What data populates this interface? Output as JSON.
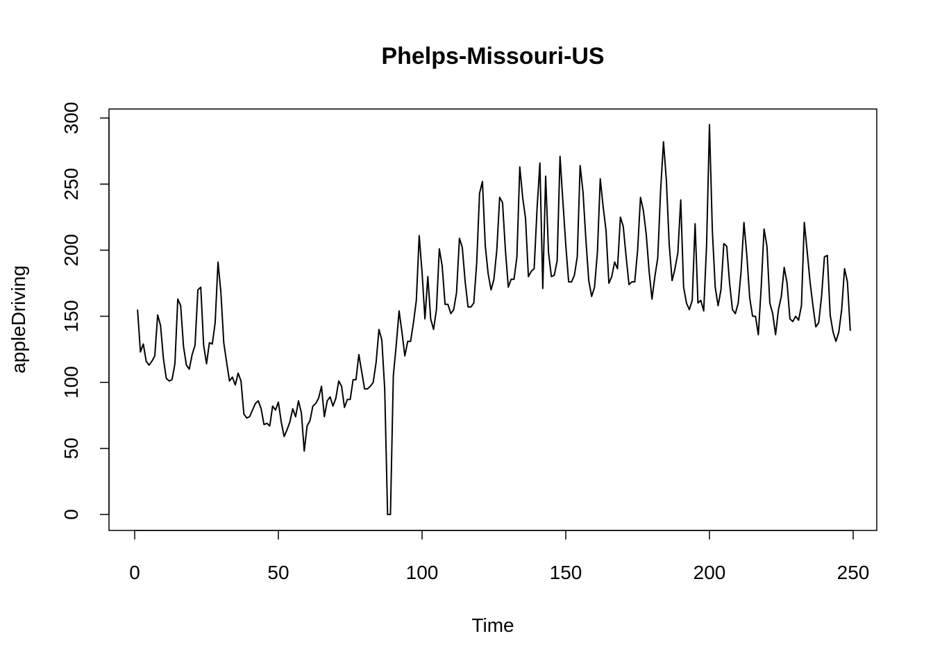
{
  "chart_data": {
    "type": "line",
    "title": "Phelps-Missouri-US",
    "xlabel": "Time",
    "ylabel": "appleDriving",
    "xlim": [
      1,
      248
    ],
    "ylim": [
      0,
      295
    ],
    "x_ticks": [
      0,
      50,
      100,
      150,
      200,
      250
    ],
    "x_tick_labels": [
      "0",
      "50",
      "100",
      "150",
      "200",
      "250"
    ],
    "y_ticks": [
      0,
      50,
      100,
      150,
      200,
      250,
      300
    ],
    "y_tick_labels": [
      "0",
      "50",
      "100",
      "150",
      "200",
      "250",
      "300"
    ],
    "grid": false,
    "legend": "none",
    "line_color": "#000000",
    "series": [
      {
        "x_start": 1,
        "values": [
          155,
          123,
          129,
          116,
          113,
          116,
          120,
          151,
          143,
          118,
          103,
          101,
          102,
          114,
          163,
          158,
          127,
          113,
          110,
          121,
          128,
          170,
          172,
          128,
          114,
          130,
          129,
          145,
          191,
          168,
          130,
          115,
          101,
          104,
          98,
          107,
          101,
          76,
          73,
          74,
          79,
          84,
          86,
          80,
          68,
          69,
          67,
          82,
          79,
          85,
          70,
          59,
          64,
          70,
          80,
          74,
          86,
          77,
          48,
          67,
          71,
          82,
          84,
          88,
          97,
          74,
          86,
          89,
          82,
          88,
          101,
          97,
          81,
          87,
          87,
          102,
          102,
          121,
          108,
          95,
          95,
          97,
          100,
          115,
          140,
          132,
          95,
          0,
          0,
          105,
          128,
          154,
          138,
          120,
          131,
          131,
          145,
          162,
          211,
          183,
          148,
          180,
          148,
          140,
          155,
          201,
          188,
          159,
          159,
          152,
          155,
          168,
          209,
          202,
          176,
          157,
          157,
          160,
          190,
          243,
          252,
          203,
          182,
          170,
          178,
          200,
          240,
          236,
          200,
          172,
          178,
          178,
          195,
          263,
          240,
          224,
          180,
          184,
          186,
          231,
          266,
          171,
          256,
          198,
          180,
          181,
          192,
          271,
          237,
          204,
          176,
          176,
          181,
          195,
          264,
          244,
          208,
          177,
          165,
          172,
          198,
          254,
          233,
          215,
          175,
          180,
          191,
          186,
          225,
          218,
          195,
          174,
          176,
          176,
          200,
          240,
          230,
          212,
          184,
          163,
          180,
          194,
          245,
          282,
          253,
          204,
          177,
          186,
          198,
          238,
          172,
          160,
          155,
          162,
          220,
          160,
          162,
          154,
          204,
          295,
          215,
          172,
          158,
          170,
          205,
          203,
          175,
          155,
          152,
          160,
          184,
          221,
          196,
          164,
          150,
          150,
          136,
          172,
          216,
          203,
          160,
          152,
          136,
          155,
          165,
          187,
          175,
          148,
          146,
          150,
          147,
          158,
          221,
          199,
          176,
          158,
          142,
          145,
          165,
          195,
          196,
          151,
          138,
          131,
          138,
          155,
          186,
          176,
          139
        ]
      }
    ]
  }
}
